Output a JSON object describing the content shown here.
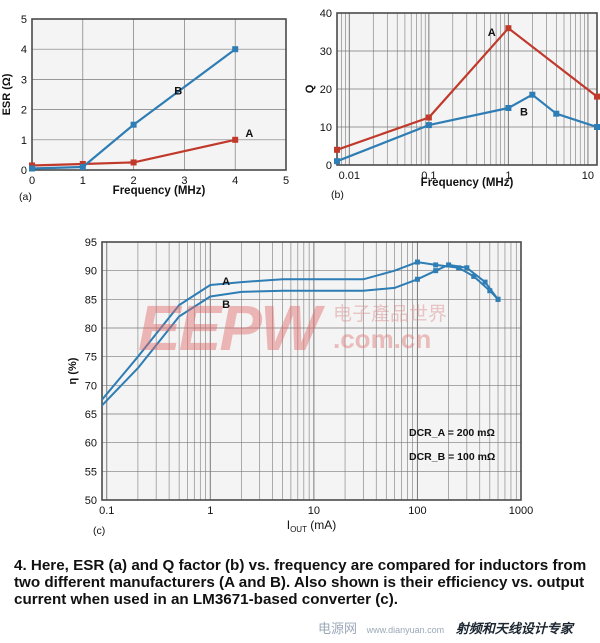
{
  "colors": {
    "a": "#c0392b",
    "b": "#2e7db4",
    "plot_bg": "#f4f4f4",
    "border": "#4a4a4a",
    "grid": "#7a7a7a"
  },
  "chart_data": [
    {
      "id": "esr",
      "type": "line",
      "ylabel": "ESR (Ω)",
      "xlabel": "Frequency (MHz)",
      "panel_label": "(a)",
      "xlim": [
        0,
        5
      ],
      "ylim": [
        0,
        5
      ],
      "xticks": [
        0,
        1,
        2,
        3,
        4,
        5
      ],
      "yticks": [
        0,
        1,
        2,
        3,
        4,
        5
      ],
      "grid": true,
      "series": [
        {
          "name": "A",
          "color": "a",
          "label_at": [
            4.2,
            1.1
          ],
          "points": [
            [
              0,
              0.15
            ],
            [
              1,
              0.2
            ],
            [
              2,
              0.25
            ],
            [
              4,
              1.0
            ]
          ]
        },
        {
          "name": "B",
          "color": "b",
          "label_at": [
            2.8,
            2.5
          ],
          "points": [
            [
              0,
              0.05
            ],
            [
              1,
              0.1
            ],
            [
              2,
              1.5
            ],
            [
              4,
              4.0
            ]
          ]
        }
      ]
    },
    {
      "id": "q",
      "type": "line",
      "ylabel": "Q",
      "xlabel": "Frequency (MHz)",
      "panel_label": "(b)",
      "xscale": "log",
      "xlim": [
        0.007,
        13
      ],
      "ylim": [
        0,
        40
      ],
      "xticks": [
        0.01,
        0.1,
        1,
        10
      ],
      "xtick_labels": [
        "0.01",
        "0.1",
        "1",
        "10"
      ],
      "yticks": [
        0,
        10,
        20,
        30,
        40
      ],
      "grid": true,
      "series": [
        {
          "name": "A",
          "color": "a",
          "label_at": [
            0.55,
            34
          ],
          "points": [
            [
              0.007,
              4
            ],
            [
              0.1,
              12.5
            ],
            [
              1,
              36
            ],
            [
              13,
              18
            ]
          ]
        },
        {
          "name": "B",
          "color": "b",
          "label_at": [
            1.4,
            13
          ],
          "points": [
            [
              0.007,
              1
            ],
            [
              0.1,
              10.5
            ],
            [
              1,
              15
            ],
            [
              2,
              18.5
            ],
            [
              4,
              13.5
            ],
            [
              13,
              10
            ]
          ]
        }
      ]
    },
    {
      "id": "eff",
      "type": "line",
      "ylabel": "η (%)",
      "xlabel": "IOUT (mA)",
      "panel_label": "(c)",
      "xscale": "log",
      "xlim": [
        0.09,
        1000
      ],
      "ylim": [
        50,
        95
      ],
      "xticks": [
        0.1,
        1,
        10,
        100,
        1000
      ],
      "xtick_labels": [
        "0.1",
        "1",
        "10",
        "100",
        "1000"
      ],
      "yticks": [
        50,
        55,
        60,
        65,
        70,
        75,
        80,
        85,
        90,
        95
      ],
      "grid": true,
      "series": [
        {
          "name": "A",
          "color": "b",
          "label_at": [
            1.3,
            87.5
          ],
          "points": [
            [
              0.09,
              67.5
            ],
            [
              0.2,
              75
            ],
            [
              0.5,
              84
            ],
            [
              1,
              87.5
            ],
            [
              2,
              88
            ],
            [
              5,
              88.5
            ],
            [
              10,
              88.5
            ],
            [
              30,
              88.5
            ],
            [
              60,
              90
            ],
            [
              100,
              91.5
            ],
            [
              150,
              91
            ],
            [
              250,
              90.5
            ],
            [
              350,
              89
            ],
            [
              500,
              86.5
            ],
            [
              600,
              85
            ]
          ]
        },
        {
          "name": "B",
          "color": "b",
          "label_at": [
            1.3,
            83.5
          ],
          "points": [
            [
              0.09,
              66.5
            ],
            [
              0.2,
              73
            ],
            [
              0.5,
              82
            ],
            [
              1,
              85.5
            ],
            [
              2,
              86.3
            ],
            [
              5,
              86.5
            ],
            [
              10,
              86.5
            ],
            [
              30,
              86.5
            ],
            [
              60,
              87
            ],
            [
              100,
              88.5
            ],
            [
              150,
              90
            ],
            [
              200,
              91
            ],
            [
              300,
              90.5
            ],
            [
              450,
              88
            ],
            [
              600,
              85
            ]
          ]
        }
      ]
    }
  ],
  "annotations": {
    "dcr_a": "DCR_A = 200 mΩ",
    "dcr_b": "DCR_B = 100 mΩ"
  },
  "watermark": {
    "main": "EEPW",
    "cn": "电子產品世界",
    "url": ".com.cn",
    "footer_left": "电源网",
    "footer_site": "www.dianyuan.com",
    "footer_brand": "射频和天线设计专家"
  },
  "caption": "4. Here, ESR (a) and Q factor (b) vs. frequency are compared for inductors from two different manufacturers (A and B). Also shown is their efficiency vs. output current when used in an LM3671-based converter (c)."
}
